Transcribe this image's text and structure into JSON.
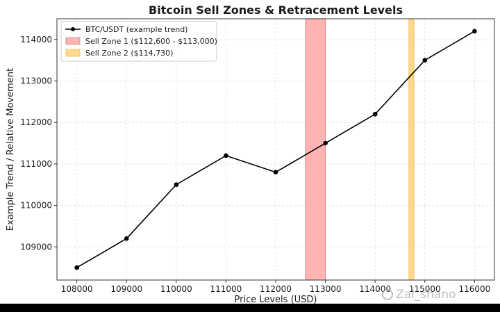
{
  "chart_data": {
    "type": "line",
    "title": "Bitcoin Sell Zones & Retracement Levels",
    "xlabel": "Price Levels (USD)",
    "ylabel": "Example Trend / Relative Movement",
    "xlim": [
      107600,
      116400
    ],
    "ylim": [
      108200,
      114500
    ],
    "xticks": [
      108000,
      109000,
      110000,
      111000,
      112000,
      113000,
      114000,
      115000,
      116000
    ],
    "xtick_labels": [
      "108000",
      "109000",
      "110000",
      "111000",
      "112000",
      "113000",
      "114000",
      "115000",
      "116000"
    ],
    "yticks": [
      109000,
      110000,
      111000,
      112000,
      113000,
      114000
    ],
    "ytick_labels": [
      "109000",
      "110000",
      "111000",
      "112000",
      "113000",
      "114000"
    ],
    "grid": true,
    "legend_position": "top-left",
    "series": [
      {
        "name": "BTC/USDT (example trend)",
        "color": "#000000",
        "x": [
          108000,
          109000,
          110000,
          111000,
          112000,
          113000,
          114000,
          115000,
          116000
        ],
        "y": [
          108500,
          109200,
          110500,
          111200,
          110800,
          111500,
          112200,
          113500,
          114200
        ]
      }
    ],
    "zones": [
      {
        "name": "Sell Zone 1 ($112,600 - $113,000)",
        "from": 112600,
        "to": 113000,
        "color": "#ffb3b3",
        "edge": "#e08585"
      },
      {
        "name": "Sell Zone 2 ($114,730)",
        "from": 114680,
        "to": 114780,
        "color": "#ffd98e",
        "edge": "#f0c060"
      }
    ]
  },
  "watermark": {
    "text": "Zai_shano"
  }
}
